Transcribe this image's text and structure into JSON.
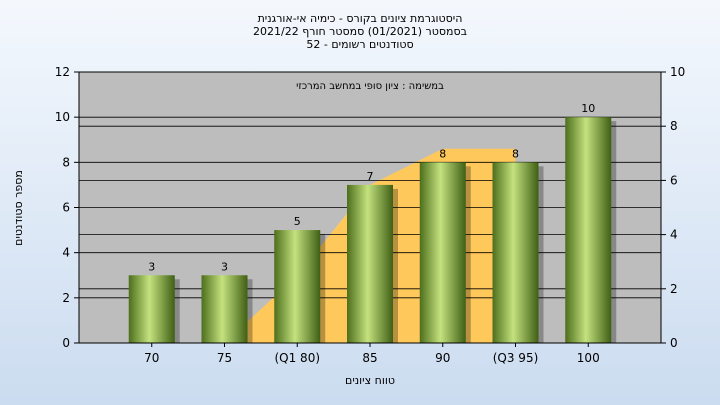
{
  "title_lines": [
    "היסטוגרמת ציונים בקורס - כימיה אי-אורגנית",
    "בסמסטר  (01/2021)  סמסטר חורף  2021/22",
    "סטודנטים רשומים - 52"
  ],
  "chart_data": {
    "type": "bar",
    "categories": [
      "70",
      "75",
      "(Q1 80)",
      "85",
      "90",
      "(Q3 95)",
      "100"
    ],
    "series": [
      {
        "values": [
          3,
          3,
          5,
          7,
          8,
          8,
          10
        ]
      }
    ],
    "plot_label": "במשימה : ציון סופי במחשב המרכזי",
    "xlabel": "טווח ציונים",
    "ylabel": "מספר סטודנטים",
    "ylim": [
      0,
      12
    ],
    "yticks": [
      0,
      2,
      4,
      6,
      8,
      10,
      12
    ],
    "y2lim": [
      0,
      10
    ],
    "y2ticks": [
      0,
      2,
      4,
      6,
      8,
      10
    ],
    "band": {
      "x": [
        "75",
        "(Q1 80)",
        "85",
        "90",
        "(Q3 95)"
      ],
      "y": [
        0,
        3,
        7,
        8.6,
        8.6
      ]
    },
    "grid": true,
    "colors": {
      "bar": "#8fc447",
      "band": "#ffc85a",
      "plot_bg": "#bdbdbd"
    }
  }
}
